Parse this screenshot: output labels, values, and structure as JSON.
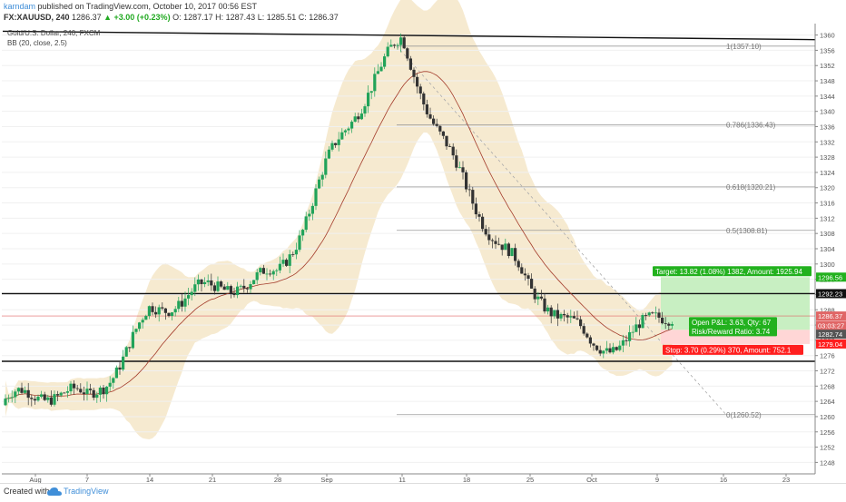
{
  "header": {
    "author": "karndam",
    "published": "published on TradingView.com, October 10, 2017 00:56 EST",
    "symbol": "FX:XAUUSD, 240",
    "last": "1286.37",
    "change": "▲ +3.00 (+0.23%)",
    "open": "O: 1287.17",
    "high": "H: 1287.43",
    "low": "L: 1285.51",
    "close": "C: 1286.37"
  },
  "legend": {
    "series": "Gold/U.S. Dollar, 240, FXCM",
    "indicator": "BB (20, close, 2.5)"
  },
  "footer": {
    "created_with": "Created with",
    "brand": "TradingView"
  },
  "colors": {
    "up": "#22a35a",
    "down": "#333333",
    "band": "#f5e6c8",
    "basis": "#a33b2a",
    "target": "#22b11e",
    "stop": "#ff1f1f",
    "profit_zone": "#c8efc2",
    "loss_zone": "#ffd6d6",
    "fib": "#9a9a9a",
    "current": "#e06666"
  },
  "chart_data": {
    "type": "candlestick",
    "symbol": "XAUUSD",
    "timeframe": "240",
    "y_axis": {
      "range": [
        1245,
        1363
      ],
      "ticks": [
        1248,
        1252,
        1256,
        1260,
        1264,
        1268,
        1272,
        1276,
        1280,
        1284,
        1288,
        1292,
        1296,
        1300,
        1304,
        1308,
        1312,
        1316,
        1320,
        1324,
        1328,
        1332,
        1336,
        1340,
        1344,
        1348,
        1352,
        1356,
        1360
      ]
    },
    "x_axis": {
      "labels": [
        "Aug",
        "7",
        "14",
        "21",
        "28",
        "Sep",
        "11",
        "18",
        "25",
        "Oct",
        "9",
        "16",
        "23"
      ]
    },
    "price_path": [
      [
        "Aug",
        1263
      ],
      [
        "7",
        1265
      ],
      [
        "14",
        1289
      ],
      [
        "21",
        1290
      ],
      [
        "28",
        1300
      ],
      [
        "Sep",
        1326
      ],
      [
        "11",
        1357
      ],
      [
        "18",
        1322
      ],
      [
        "25",
        1290
      ],
      [
        "Oct",
        1280
      ],
      [
        "9",
        1286.37
      ]
    ],
    "bollinger": {
      "period": 20,
      "source": "close",
      "mult": 2.5
    },
    "fibonacci": [
      {
        "level": "1",
        "price": 1357.1
      },
      {
        "level": "0.786",
        "price": 1336.43
      },
      {
        "level": "0.618",
        "price": 1320.21
      },
      {
        "level": "0.5",
        "price": 1308.81
      },
      {
        "level": "0",
        "price": 1260.52
      }
    ],
    "horizontal_lines": [
      1292.23,
      1274.5
    ],
    "trendline": {
      "from": [
        "Aug",
        1361
      ],
      "to": [
        "23",
        1358.8
      ]
    },
    "position": {
      "target_label": "Target: 13.82 (1.08%) 1382, Amount: 1925.94",
      "target_price": 1296.56,
      "entry_price": 1282.74,
      "stop_price": 1279.04,
      "stop_label": "Stop: 3.70 (0.29%) 370, Amount: 752.1",
      "open_pl_label": "Open P&L: 3.63, Qty: 67",
      "rr_label": "Risk/Reward Ratio: 3.74"
    },
    "price_tags": [
      {
        "value": "1296.56",
        "color": "#22b11e"
      },
      {
        "value": "1292.23",
        "color": "#111111"
      },
      {
        "value": "1286.37",
        "color": "#e06666"
      },
      {
        "value": "03:03:27",
        "color": "#e06666"
      },
      {
        "value": "1282.74",
        "color": "#555555"
      },
      {
        "value": "1279.04",
        "color": "#ff1f1f"
      }
    ]
  }
}
